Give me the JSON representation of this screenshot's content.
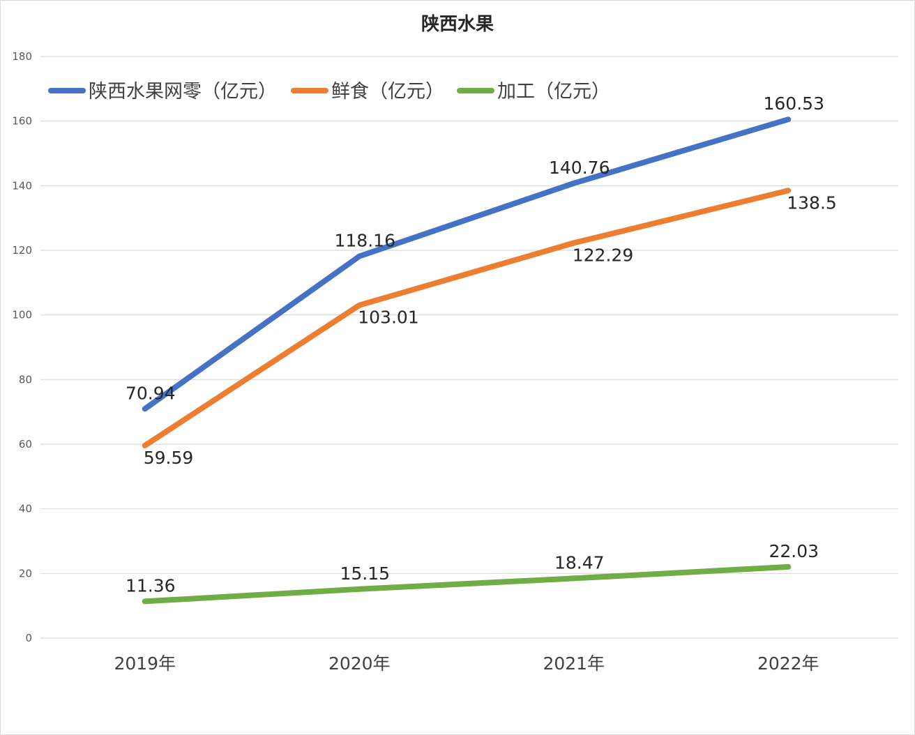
{
  "chart_data": {
    "type": "line",
    "title": "陕西水果",
    "xlabel": "",
    "ylabel": "",
    "categories": [
      "2019年",
      "2020年",
      "2021年",
      "2022年"
    ],
    "ylim": [
      0,
      180
    ],
    "yticks": [
      0,
      20,
      40,
      60,
      80,
      100,
      120,
      140,
      160,
      180
    ],
    "grid": true,
    "legend_position": "top-left",
    "series": [
      {
        "name": "陕西水果网零（亿元）",
        "color": "#4472C4",
        "values": [
          70.94,
          118.16,
          140.76,
          160.53
        ],
        "labels": [
          "70.94",
          "118.16",
          "140.76",
          "160.53"
        ],
        "label_position": "above"
      },
      {
        "name": "鲜食（亿元）",
        "color": "#ED7D31",
        "values": [
          59.59,
          103.01,
          122.29,
          138.5
        ],
        "labels": [
          "59.59",
          "103.01",
          "122.29",
          "138.5"
        ],
        "label_position": "below"
      },
      {
        "name": "加工（亿元）",
        "color": "#70AD47",
        "values": [
          11.36,
          15.15,
          18.47,
          22.03
        ],
        "labels": [
          "11.36",
          "15.15",
          "18.47",
          "22.03"
        ],
        "label_position": "above"
      }
    ]
  }
}
